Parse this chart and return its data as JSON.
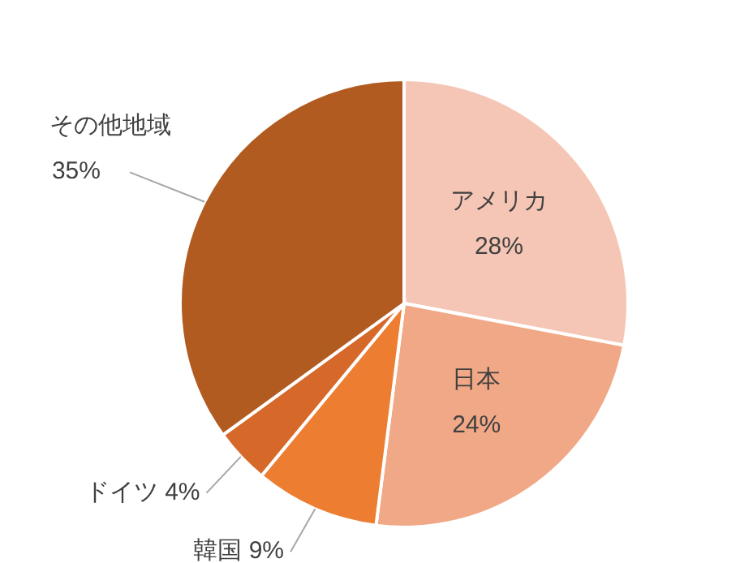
{
  "chart_data": {
    "type": "pie",
    "categories": [
      "アメリカ",
      "日本",
      "韓国",
      "ドイツ",
      "その他地域"
    ],
    "values": [
      28,
      24,
      9,
      4,
      35
    ],
    "value_labels": [
      "28%",
      "24%",
      "9%",
      "4%",
      "35%"
    ],
    "colors": [
      "#f5c6b5",
      "#f1a886",
      "#ed7d31",
      "#d6692a",
      "#b15b20"
    ]
  }
}
